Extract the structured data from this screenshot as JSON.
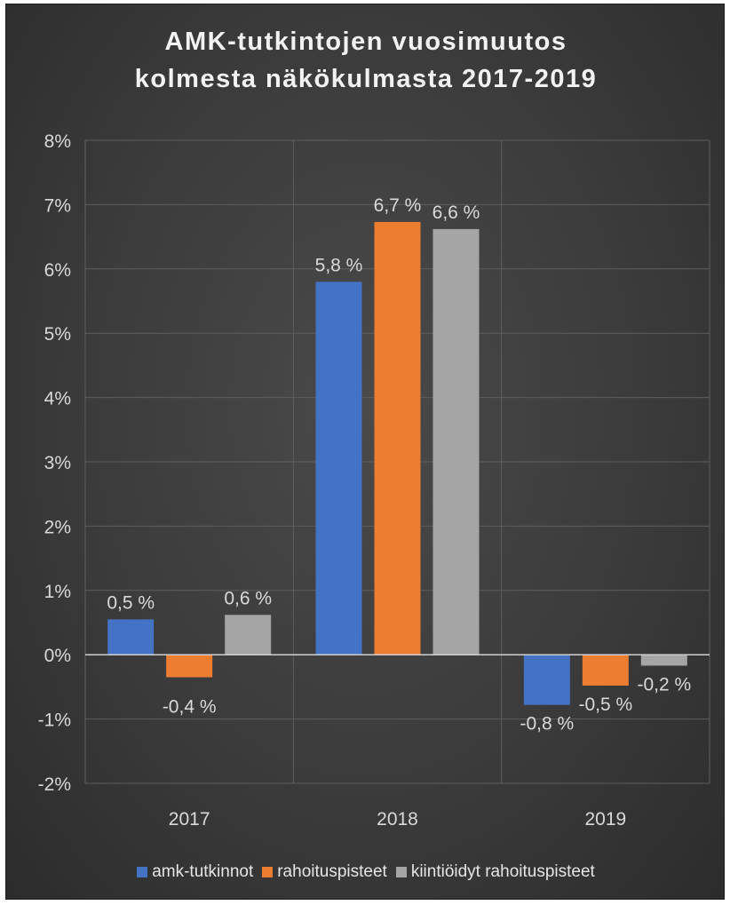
{
  "chart_data": {
    "type": "bar",
    "title_line1": "AMK-tutkintojen vuosimuutos",
    "title_line2": "kolmesta näkökulmasta 2017-2019",
    "categories": [
      "2017",
      "2018",
      "2019"
    ],
    "ylim": [
      -0.02,
      0.08
    ],
    "yticks": [
      "-2%",
      "-1%",
      "0%",
      "1%",
      "2%",
      "3%",
      "4%",
      "5%",
      "6%",
      "7%",
      "8%"
    ],
    "grid": true,
    "legend_position": "bottom",
    "series": [
      {
        "name": "amk-tutkinnot",
        "color": "#4472c4",
        "values": [
          0.0055,
          0.058,
          -0.0078
        ],
        "labels": [
          "0,5 %",
          "5,8 %",
          "-0,8 %"
        ]
      },
      {
        "name": "rahoituspisteet",
        "color": "#ed7d31",
        "values": [
          -0.0035,
          0.0673,
          -0.0048
        ],
        "labels": [
          "-0,4 %",
          "6,7 %",
          "-0,5 %"
        ]
      },
      {
        "name": "kiintiöidyt rahoituspisteet",
        "color": "#a5a5a5",
        "values": [
          0.0062,
          0.0662,
          -0.0017
        ],
        "labels": [
          "0,6 %",
          "6,6 %",
          "-0,2 %"
        ]
      }
    ]
  }
}
